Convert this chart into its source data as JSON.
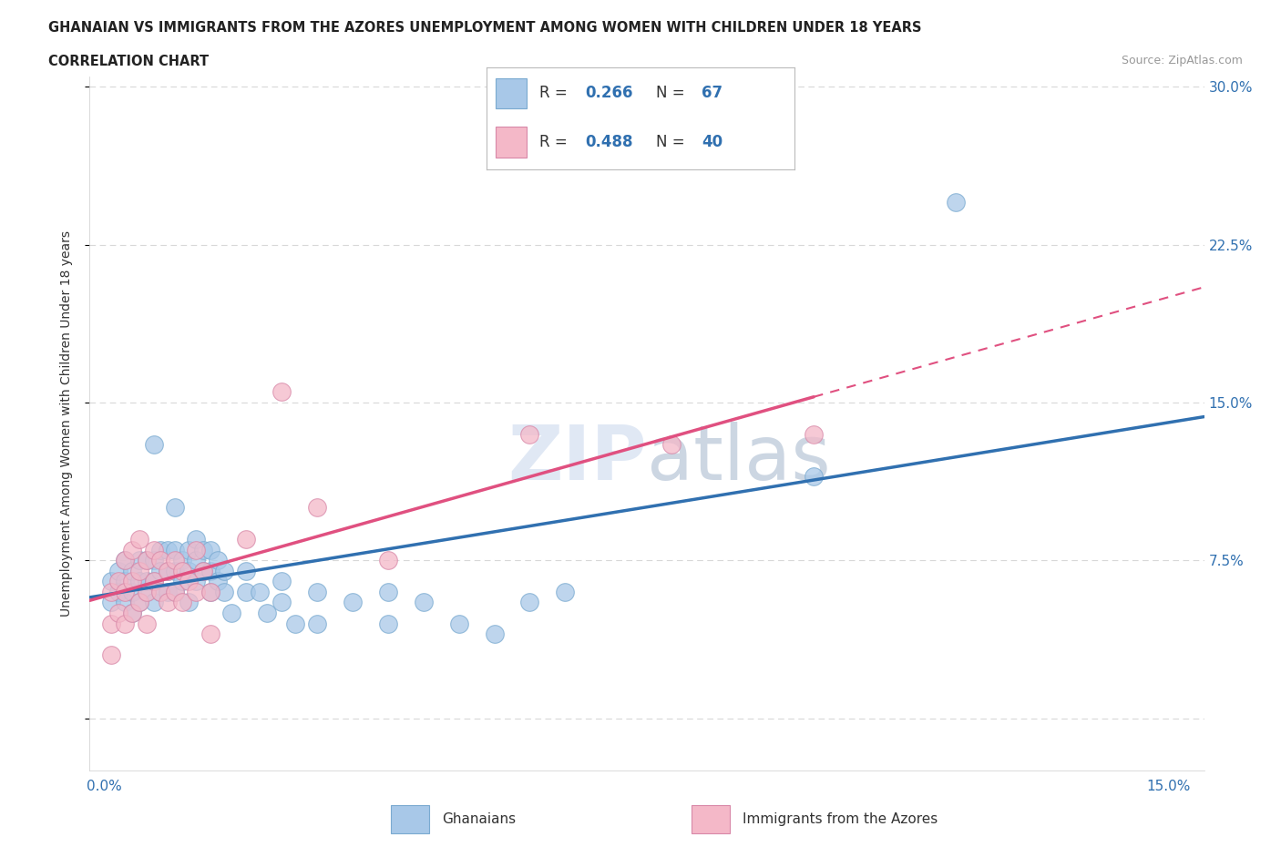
{
  "title1": "GHANAIAN VS IMMIGRANTS FROM THE AZORES UNEMPLOYMENT AMONG WOMEN WITH CHILDREN UNDER 18 YEARS",
  "title2": "CORRELATION CHART",
  "source": "Source: ZipAtlas.com",
  "ylabel": "Unemployment Among Women with Children Under 18 years",
  "xlim": [
    -0.002,
    0.155
  ],
  "ylim": [
    -0.025,
    0.305
  ],
  "xticks": [
    0.0,
    0.025,
    0.05,
    0.075,
    0.1,
    0.125,
    0.15
  ],
  "xtick_labels": [
    "0.0%",
    "",
    "",
    "",
    "",
    "",
    "15.0%"
  ],
  "yticks": [
    0.0,
    0.075,
    0.15,
    0.225,
    0.3
  ],
  "ytick_labels": [
    "",
    "7.5%",
    "15.0%",
    "22.5%",
    "30.0%"
  ],
  "color_blue": "#a8c8e8",
  "color_pink": "#f4b8c8",
  "line_blue": "#3070b0",
  "line_pink": "#e05080",
  "R_blue": 0.266,
  "N_blue": 67,
  "R_pink": 0.488,
  "N_pink": 40,
  "legend_label_blue": "Ghanaians",
  "legend_label_pink": "Immigrants from the Azores",
  "background_color": "#ffffff",
  "grid_color": "#d8d8d8",
  "scatter_blue": [
    [
      0.001,
      0.065
    ],
    [
      0.001,
      0.055
    ],
    [
      0.002,
      0.07
    ],
    [
      0.002,
      0.06
    ],
    [
      0.003,
      0.075
    ],
    [
      0.003,
      0.065
    ],
    [
      0.003,
      0.055
    ],
    [
      0.004,
      0.07
    ],
    [
      0.004,
      0.06
    ],
    [
      0.004,
      0.05
    ],
    [
      0.005,
      0.075
    ],
    [
      0.005,
      0.065
    ],
    [
      0.005,
      0.055
    ],
    [
      0.006,
      0.075
    ],
    [
      0.006,
      0.065
    ],
    [
      0.006,
      0.06
    ],
    [
      0.007,
      0.13
    ],
    [
      0.007,
      0.075
    ],
    [
      0.007,
      0.065
    ],
    [
      0.007,
      0.055
    ],
    [
      0.008,
      0.08
    ],
    [
      0.008,
      0.07
    ],
    [
      0.008,
      0.06
    ],
    [
      0.009,
      0.08
    ],
    [
      0.009,
      0.07
    ],
    [
      0.009,
      0.06
    ],
    [
      0.01,
      0.1
    ],
    [
      0.01,
      0.08
    ],
    [
      0.01,
      0.07
    ],
    [
      0.01,
      0.06
    ],
    [
      0.011,
      0.075
    ],
    [
      0.011,
      0.065
    ],
    [
      0.012,
      0.08
    ],
    [
      0.012,
      0.07
    ],
    [
      0.012,
      0.055
    ],
    [
      0.013,
      0.085
    ],
    [
      0.013,
      0.075
    ],
    [
      0.013,
      0.065
    ],
    [
      0.014,
      0.08
    ],
    [
      0.014,
      0.07
    ],
    [
      0.015,
      0.08
    ],
    [
      0.015,
      0.07
    ],
    [
      0.015,
      0.06
    ],
    [
      0.016,
      0.075
    ],
    [
      0.016,
      0.065
    ],
    [
      0.017,
      0.07
    ],
    [
      0.017,
      0.06
    ],
    [
      0.018,
      0.05
    ],
    [
      0.02,
      0.07
    ],
    [
      0.02,
      0.06
    ],
    [
      0.022,
      0.06
    ],
    [
      0.023,
      0.05
    ],
    [
      0.025,
      0.065
    ],
    [
      0.025,
      0.055
    ],
    [
      0.027,
      0.045
    ],
    [
      0.03,
      0.06
    ],
    [
      0.03,
      0.045
    ],
    [
      0.035,
      0.055
    ],
    [
      0.04,
      0.06
    ],
    [
      0.04,
      0.045
    ],
    [
      0.045,
      0.055
    ],
    [
      0.05,
      0.045
    ],
    [
      0.055,
      0.04
    ],
    [
      0.06,
      0.055
    ],
    [
      0.065,
      0.06
    ],
    [
      0.1,
      0.115
    ],
    [
      0.12,
      0.245
    ]
  ],
  "scatter_pink": [
    [
      0.001,
      0.06
    ],
    [
      0.001,
      0.045
    ],
    [
      0.001,
      0.03
    ],
    [
      0.002,
      0.065
    ],
    [
      0.002,
      0.05
    ],
    [
      0.003,
      0.075
    ],
    [
      0.003,
      0.06
    ],
    [
      0.003,
      0.045
    ],
    [
      0.004,
      0.08
    ],
    [
      0.004,
      0.065
    ],
    [
      0.004,
      0.05
    ],
    [
      0.005,
      0.085
    ],
    [
      0.005,
      0.07
    ],
    [
      0.005,
      0.055
    ],
    [
      0.006,
      0.075
    ],
    [
      0.006,
      0.06
    ],
    [
      0.006,
      0.045
    ],
    [
      0.007,
      0.08
    ],
    [
      0.007,
      0.065
    ],
    [
      0.008,
      0.075
    ],
    [
      0.008,
      0.06
    ],
    [
      0.009,
      0.07
    ],
    [
      0.009,
      0.055
    ],
    [
      0.01,
      0.075
    ],
    [
      0.01,
      0.06
    ],
    [
      0.011,
      0.07
    ],
    [
      0.011,
      0.055
    ],
    [
      0.012,
      0.065
    ],
    [
      0.013,
      0.08
    ],
    [
      0.013,
      0.06
    ],
    [
      0.014,
      0.07
    ],
    [
      0.015,
      0.06
    ],
    [
      0.015,
      0.04
    ],
    [
      0.02,
      0.085
    ],
    [
      0.025,
      0.155
    ],
    [
      0.03,
      0.1
    ],
    [
      0.04,
      0.075
    ],
    [
      0.06,
      0.135
    ],
    [
      0.08,
      0.13
    ],
    [
      0.1,
      0.135
    ]
  ]
}
